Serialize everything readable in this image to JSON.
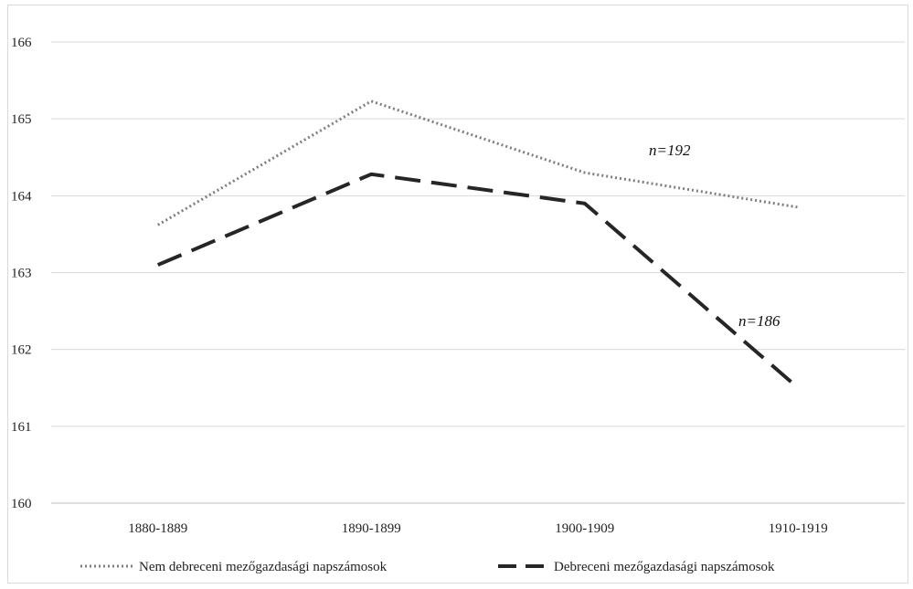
{
  "chart_data": {
    "type": "line",
    "categories": [
      "1880-1889",
      "1890-1899",
      "1900-1909",
      "1910-1919"
    ],
    "ylim": [
      160,
      166
    ],
    "yticks": [
      "160",
      "161",
      "162",
      "163",
      "164",
      "165",
      "166"
    ],
    "grid": true,
    "legend_position": "bottom",
    "series": [
      {
        "name": "Nem debreceni mezőgazdasági napszámosok",
        "values": [
          163.62,
          165.23,
          164.3,
          163.85
        ],
        "style": "dotted",
        "color": "#7f7f7f"
      },
      {
        "name": "Debreceni mezőgazdasági napszámosok",
        "values": [
          163.1,
          164.28,
          163.9,
          161.5
        ],
        "style": "dashed",
        "color": "#262626"
      }
    ],
    "annotations": [
      "n=192",
      "n=186"
    ]
  }
}
